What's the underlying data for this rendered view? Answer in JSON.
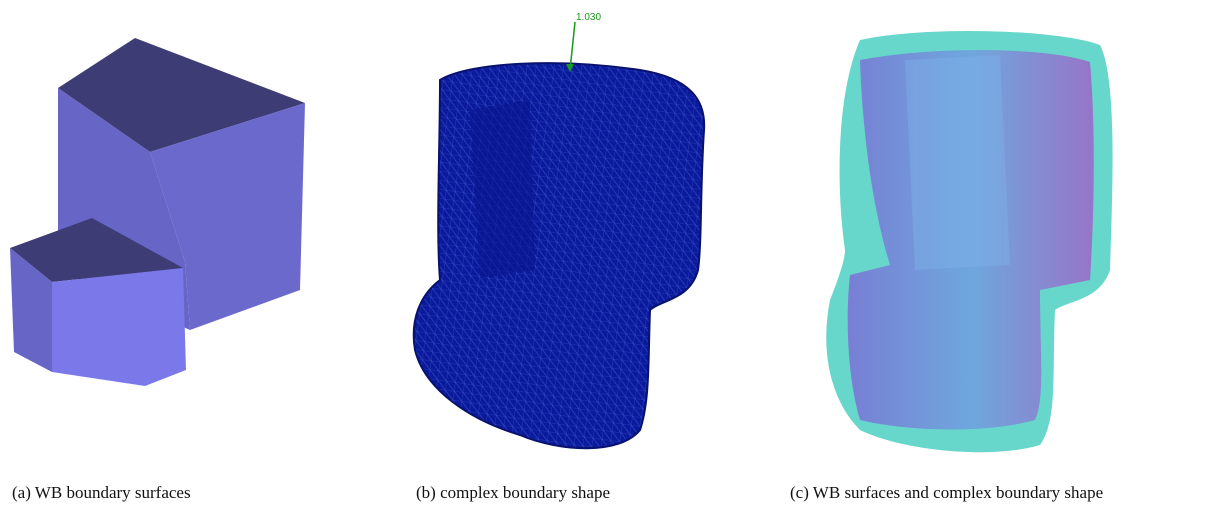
{
  "panels": [
    {
      "caption": "(a) WB boundary surfaces"
    },
    {
      "caption": "(b) complex boundary shape",
      "annotation": "1.030"
    },
    {
      "caption": "(c) WB surfaces and complex boundary shape"
    }
  ]
}
